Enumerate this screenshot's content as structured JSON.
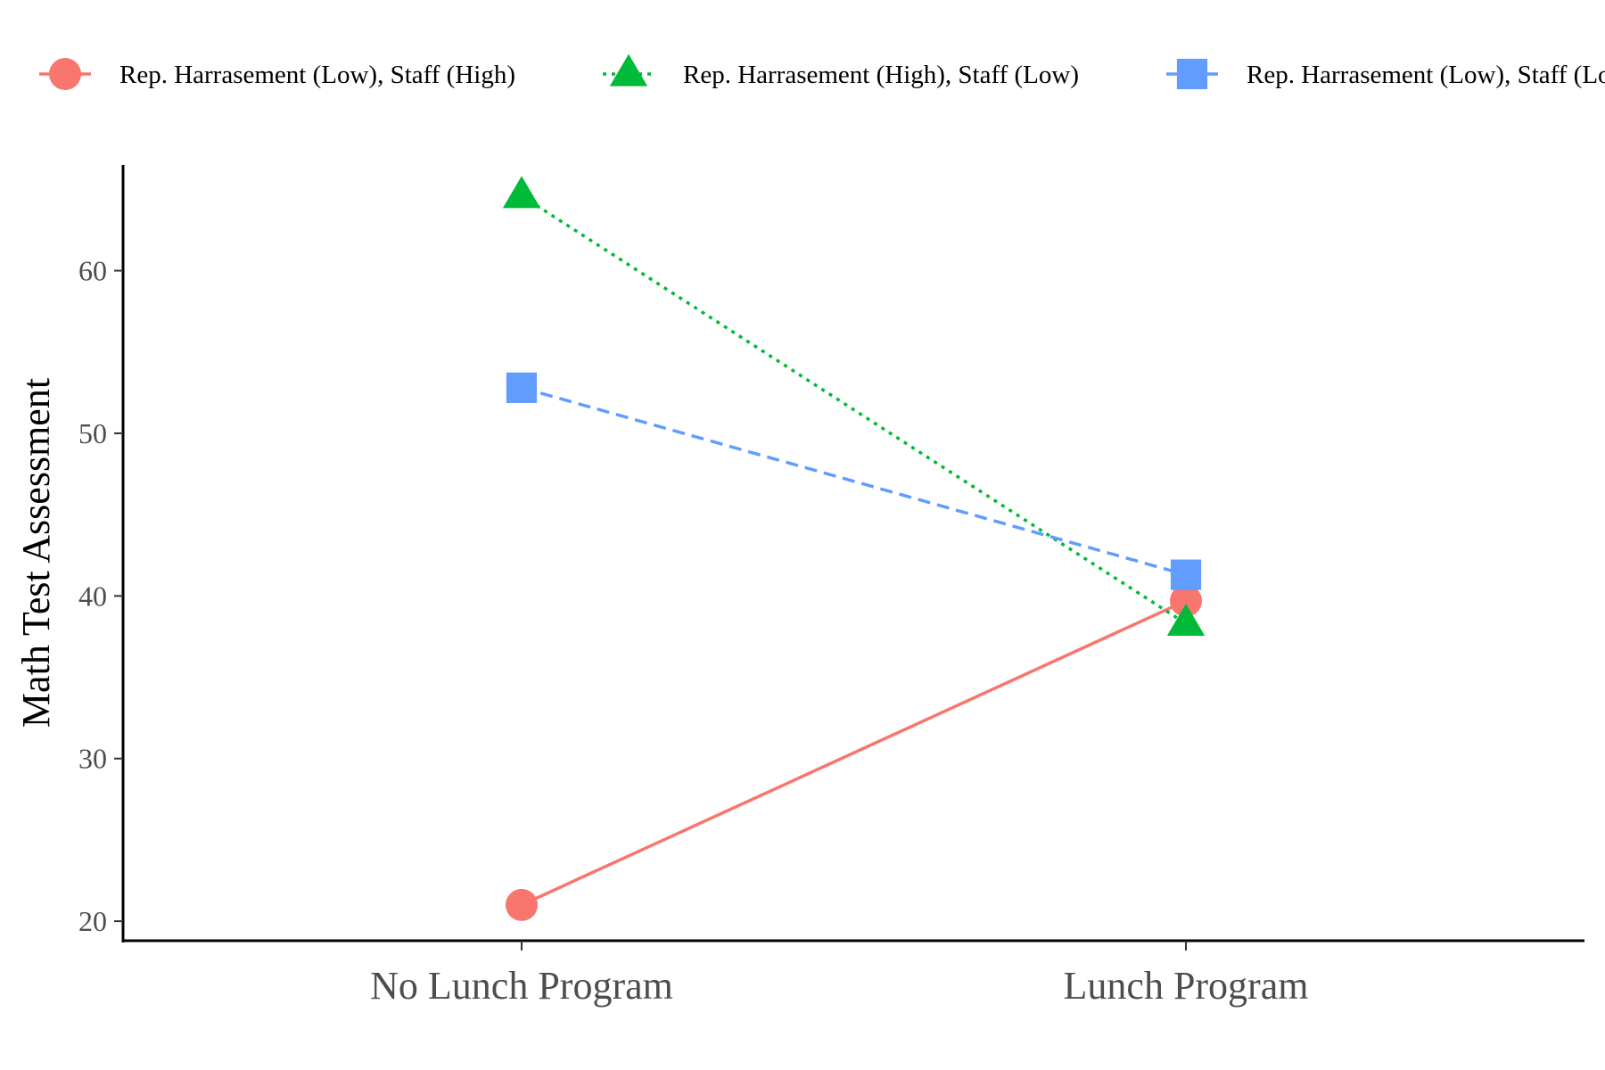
{
  "chart_data": {
    "type": "line",
    "categories": [
      "No Lunch Program",
      "Lunch Program"
    ],
    "ylabel": "Math Test Assessment",
    "xlabel": "",
    "ylim": [
      18.8,
      66.5
    ],
    "yticks": [
      20,
      30,
      40,
      50,
      60
    ],
    "legend_position": "top",
    "series": [
      {
        "name": "Rep. Harrasement (Low), Staff (High)",
        "values": [
          21.0,
          39.7
        ],
        "color": "#F8766D",
        "marker": "circle",
        "dash": "solid"
      },
      {
        "name": "Rep. Harrasement (High), Staff (Low)",
        "values": [
          64.6,
          38.3
        ],
        "color": "#00BA38",
        "marker": "triangle",
        "dash": "dotted"
      },
      {
        "name": "Rep. Harrasement (Low), Staff (Low)",
        "values": [
          52.8,
          41.3
        ],
        "color": "#619CFF",
        "marker": "square",
        "dash": "dashed"
      }
    ]
  }
}
